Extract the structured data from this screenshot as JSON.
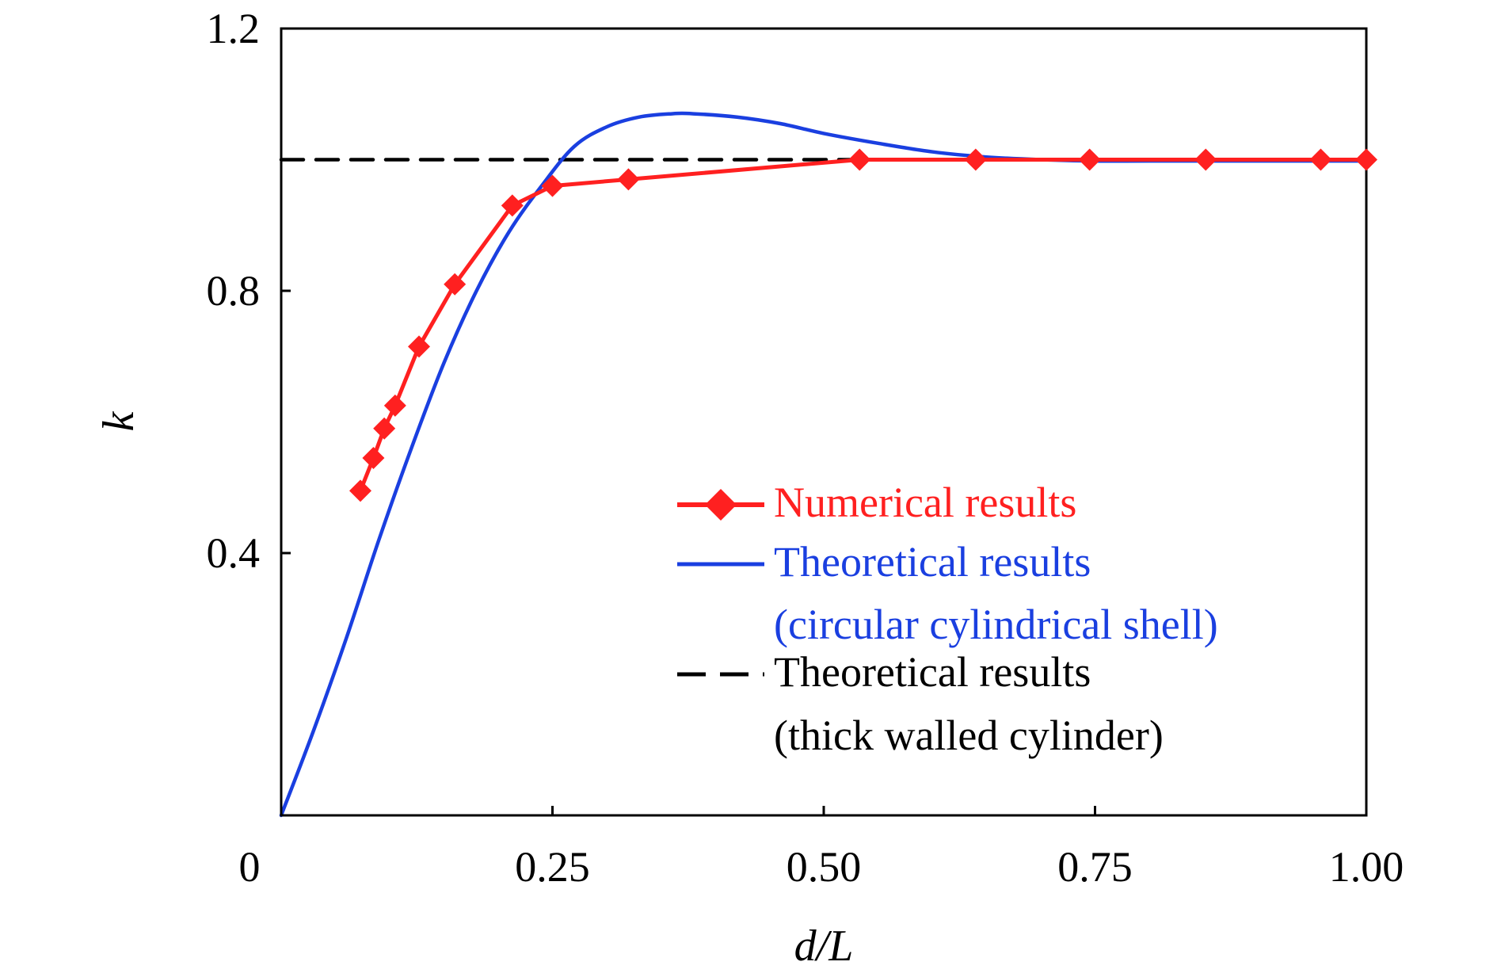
{
  "chart_data": {
    "type": "line",
    "title": "",
    "xlabel": "d/L",
    "ylabel": "k",
    "xlim": [
      0,
      1.0
    ],
    "ylim": [
      0,
      1.2
    ],
    "x_ticks": [
      0,
      0.25,
      0.5,
      0.75,
      1.0
    ],
    "x_tick_labels": [
      "0",
      "0.25",
      "0.50",
      "0.75",
      "1.00"
    ],
    "y_ticks": [
      0.4,
      0.8,
      1.2
    ],
    "y_tick_labels": [
      "0.4",
      "0.8",
      "1.2"
    ],
    "grid": false,
    "legend_position": "bottom-right",
    "series": [
      {
        "name": "Numerical results",
        "color": "#ff2020",
        "marker": "diamond",
        "x": [
          0.073,
          0.085,
          0.095,
          0.105,
          0.127,
          0.16,
          0.213,
          0.25,
          0.32,
          0.533,
          0.64,
          0.745,
          0.852,
          0.958,
          1.0
        ],
        "y": [
          0.495,
          0.545,
          0.59,
          0.625,
          0.715,
          0.81,
          0.93,
          0.96,
          0.97,
          1.0,
          1.0,
          1.0,
          1.0,
          1.0,
          1.0
        ]
      },
      {
        "name": "Theoretical results",
        "name_line2": "(circular cylindrical shell)",
        "color": "#1a3fe0",
        "marker": "none",
        "x": [
          0.0,
          0.03,
          0.06,
          0.09,
          0.12,
          0.15,
          0.18,
          0.21,
          0.24,
          0.27,
          0.3,
          0.33,
          0.36,
          0.38,
          0.42,
          0.46,
          0.5,
          0.55,
          0.6,
          0.65,
          0.7,
          0.75,
          0.8,
          0.9,
          1.0
        ],
        "y": [
          0.0,
          0.13,
          0.27,
          0.42,
          0.56,
          0.69,
          0.8,
          0.89,
          0.96,
          1.02,
          1.05,
          1.065,
          1.07,
          1.07,
          1.065,
          1.055,
          1.04,
          1.025,
          1.012,
          1.004,
          1.0,
          0.998,
          0.998,
          0.998,
          0.998
        ]
      },
      {
        "name": "Theoretical results",
        "name_line2": "(thick walled cylinder)",
        "color": "#000000",
        "marker": "none",
        "dash": true,
        "x": [
          0.0,
          1.0
        ],
        "y": [
          1.0,
          1.0
        ]
      }
    ]
  }
}
